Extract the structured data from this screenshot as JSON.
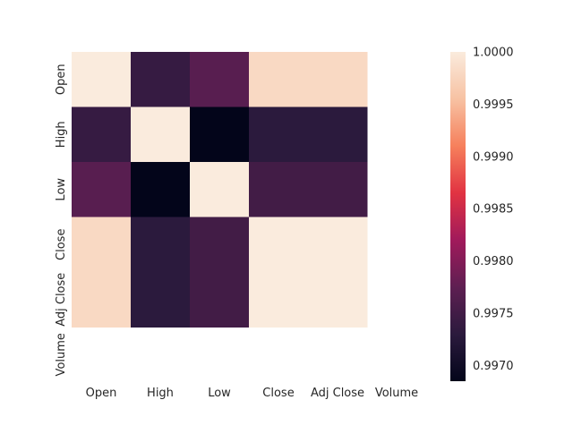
{
  "chart_data": {
    "type": "heatmap",
    "x_categories": [
      "Open",
      "High",
      "Low",
      "Close",
      "Adj Close",
      "Volume"
    ],
    "y_categories": [
      "Open",
      "High",
      "Low",
      "Close",
      "Adj Close",
      "Volume"
    ],
    "matrix": [
      [
        1.0,
        0.9974,
        0.9977,
        0.9998,
        0.9998,
        null
      ],
      [
        0.9974,
        1.0,
        0.99685,
        0.9973,
        0.9973,
        null
      ],
      [
        0.9977,
        0.99685,
        1.0,
        0.9975,
        0.9975,
        null
      ],
      [
        0.9998,
        0.9973,
        0.9975,
        1.0,
        1.0,
        null
      ],
      [
        0.9998,
        0.9973,
        0.9975,
        1.0,
        1.0,
        null
      ],
      [
        null,
        null,
        null,
        null,
        null,
        null
      ]
    ],
    "colorbar": {
      "min": 0.99685,
      "max": 1.0,
      "ticks": [
        0.997,
        0.9975,
        0.998,
        0.9985,
        0.999,
        0.9995,
        1.0
      ],
      "tick_labels": [
        "0.9970",
        "0.9975",
        "0.9980",
        "0.9985",
        "0.9990",
        "0.9995",
        "1.0000"
      ]
    },
    "colormap": [
      "#03051a",
      "#2b1a3d",
      "#5e1f52",
      "#a11a5b",
      "#e13342",
      "#f6805c",
      "#f7c2a3",
      "#faebdd"
    ],
    "grid": false,
    "legend": "colorbar-right"
  }
}
